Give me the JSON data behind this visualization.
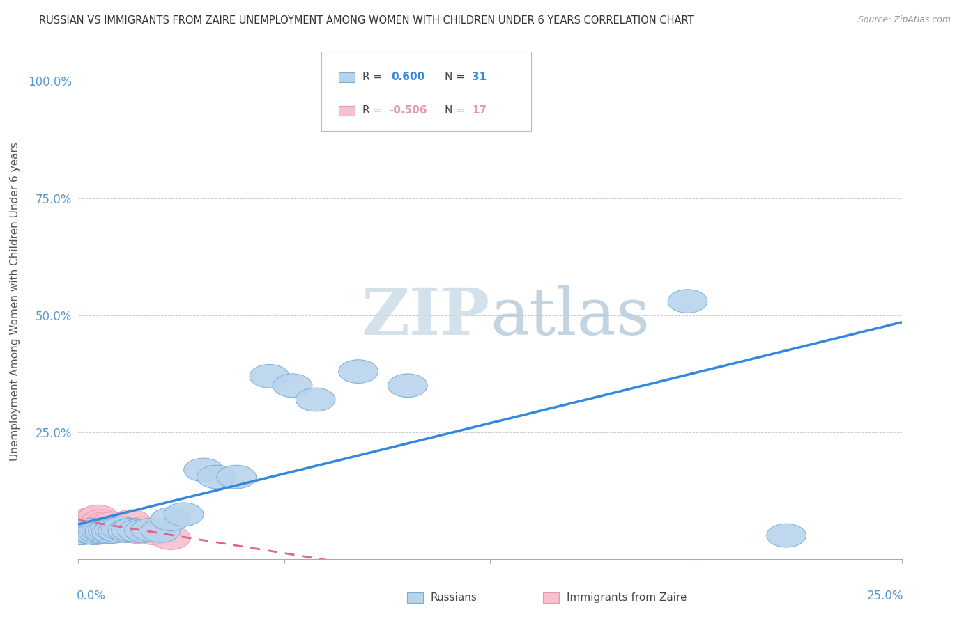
{
  "title": "RUSSIAN VS IMMIGRANTS FROM ZAIRE UNEMPLOYMENT AMONG WOMEN WITH CHILDREN UNDER 6 YEARS CORRELATION CHART",
  "source": "Source: ZipAtlas.com",
  "ylabel": "Unemployment Among Women with Children Under 6 years",
  "ytick_labels": [
    "100.0%",
    "75.0%",
    "50.0%",
    "25.0%"
  ],
  "ytick_values": [
    1.0,
    0.75,
    0.5,
    0.25
  ],
  "xlim": [
    0.0,
    0.25
  ],
  "ylim": [
    -0.02,
    1.08
  ],
  "russian_R": 0.6,
  "russian_N": 31,
  "zaire_R": -0.506,
  "zaire_N": 17,
  "russian_color": "#b8d4ec",
  "russian_edge_color": "#7aaed8",
  "zaire_color": "#f8c0cc",
  "zaire_edge_color": "#e898b0",
  "russian_line_color": "#3388dd",
  "zaire_line_color": "#dd6688",
  "watermark": "ZIPatlas",
  "watermark_color": "#dce8f0",
  "title_color": "#333333",
  "axis_label_color": "#555555",
  "ytick_color": "#5599cc",
  "xtick_color": "#5599cc",
  "grid_color": "#cccccc",
  "russians_x": [
    0.001,
    0.002,
    0.003,
    0.004,
    0.005,
    0.006,
    0.007,
    0.008,
    0.009,
    0.01,
    0.011,
    0.012,
    0.013,
    0.015,
    0.016,
    0.018,
    0.02,
    0.022,
    0.025,
    0.028,
    0.032,
    0.038,
    0.042,
    0.048,
    0.058,
    0.065,
    0.072,
    0.085,
    0.1,
    0.185,
    0.215
  ],
  "russians_y": [
    0.035,
    0.04,
    0.038,
    0.042,
    0.035,
    0.038,
    0.04,
    0.038,
    0.04,
    0.038,
    0.042,
    0.04,
    0.045,
    0.04,
    0.042,
    0.04,
    0.04,
    0.042,
    0.04,
    0.065,
    0.075,
    0.17,
    0.155,
    0.155,
    0.37,
    0.35,
    0.32,
    0.38,
    0.35,
    0.53,
    0.03
  ],
  "zaire_x": [
    0.001,
    0.002,
    0.003,
    0.004,
    0.005,
    0.006,
    0.007,
    0.008,
    0.009,
    0.01,
    0.012,
    0.014,
    0.016,
    0.018,
    0.02,
    0.023,
    0.028
  ],
  "zaire_y": [
    0.055,
    0.06,
    0.05,
    0.065,
    0.05,
    0.07,
    0.06,
    0.055,
    0.045,
    0.055,
    0.05,
    0.04,
    0.06,
    0.038,
    0.045,
    0.035,
    0.025
  ],
  "russian_line_x": [
    0.0,
    0.25
  ],
  "russian_line_y": [
    0.0,
    0.54
  ],
  "zaire_line_x": [
    0.0,
    0.12
  ],
  "zaire_line_y": [
    0.065,
    0.0
  ]
}
